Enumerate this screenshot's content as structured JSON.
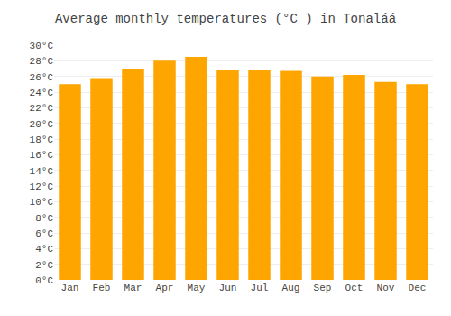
{
  "chart_data": {
    "type": "bar",
    "title": "Average monthly temperatures (°C ) in Tonaláá",
    "categories": [
      "Jan",
      "Feb",
      "Mar",
      "Apr",
      "May",
      "Jun",
      "Jul",
      "Aug",
      "Sep",
      "Oct",
      "Nov",
      "Dec"
    ],
    "values": [
      25.0,
      25.8,
      27.0,
      28.0,
      28.5,
      26.8,
      26.8,
      26.7,
      26.0,
      26.2,
      25.3,
      25.0
    ],
    "color": "#FFA500",
    "ylim": [
      0,
      30
    ],
    "yticks": [
      {
        "value": 0,
        "label": "0°C"
      },
      {
        "value": 2,
        "label": "2°C"
      },
      {
        "value": 4,
        "label": "4°C"
      },
      {
        "value": 6,
        "label": "6°C"
      },
      {
        "value": 8,
        "label": "8°C"
      },
      {
        "value": 10,
        "label": "10°C"
      },
      {
        "value": 12,
        "label": "12°C"
      },
      {
        "value": 14,
        "label": "14°C"
      },
      {
        "value": 16,
        "label": "16°C"
      },
      {
        "value": 18,
        "label": "18°C"
      },
      {
        "value": 20,
        "label": "20°C"
      },
      {
        "value": 22,
        "label": "22°C"
      },
      {
        "value": 24,
        "label": "24°C"
      },
      {
        "value": 26,
        "label": "26°C"
      },
      {
        "value": 28,
        "label": "28°C"
      },
      {
        "value": 30,
        "label": "30°C"
      }
    ],
    "grid": true
  }
}
